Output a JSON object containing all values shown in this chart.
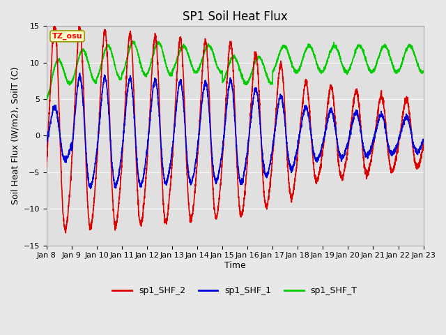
{
  "title": "SP1 Soil Heat Flux",
  "xlabel": "Time",
  "ylabel": "Soil Heat Flux (W/m2), SoilT (C)",
  "ylim": [
    -15,
    15
  ],
  "yticks": [
    -15,
    -10,
    -5,
    0,
    5,
    10,
    15
  ],
  "tick_labels": [
    "Jan 8",
    "Jan 9",
    "Jan 10",
    "Jan 11",
    "Jan 12",
    "Jan 13",
    "Jan 14",
    "Jan 15",
    "Jan 16",
    "Jan 17",
    "Jan 18",
    "Jan 19",
    "Jan 20",
    "Jan 21",
    "Jan 22",
    "Jan 23"
  ],
  "colors": {
    "shf2": "#dd0000",
    "shf1": "#0000dd",
    "shfT": "#00cc00",
    "fig_bg": "#e8e8e8",
    "plot_bg": "#e0e0e0"
  },
  "tz_label": "TZ_osu",
  "legend": [
    "sp1_SHF_2",
    "sp1_SHF_1",
    "sp1_SHF_T"
  ],
  "title_fontsize": 12,
  "label_fontsize": 9,
  "tick_fontsize": 8,
  "linewidth": 1.2
}
